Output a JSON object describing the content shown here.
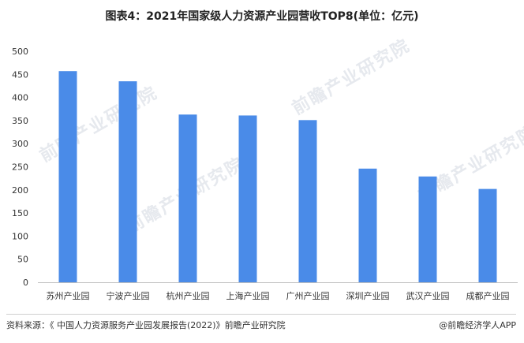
{
  "title": "图表4：2021年国家级人力资源产业园营收TOP8(单位：亿元)",
  "footer": {
    "source": "资料来源：《 中国人力资源服务产业园发展报告(2022)》前瞻产业研究院",
    "brand": "@前瞻经济学人APP"
  },
  "watermark": {
    "text": "前瞻产业研究院"
  },
  "colors": {
    "bar": "#4a8be8",
    "axis": "#bfbfbf",
    "watermark": "#e6e9ee"
  },
  "chart_data": {
    "type": "bar",
    "title": "图表4：2021年国家级人力资源产业园营收TOP8(单位：亿元)",
    "xlabel": "",
    "ylabel": "",
    "categories": [
      "苏州产业园",
      "宁波产业园",
      "杭州产业园",
      "上海产业园",
      "广州产业园",
      "深圳产业园",
      "武汉产业园",
      "成都产业园"
    ],
    "values": [
      457,
      435,
      363,
      361,
      351,
      246,
      229,
      202
    ],
    "ylim": [
      0,
      500
    ],
    "yticks": [
      0,
      50,
      100,
      150,
      200,
      250,
      300,
      350,
      400,
      450,
      500
    ],
    "grid": false,
    "legend": "none"
  }
}
